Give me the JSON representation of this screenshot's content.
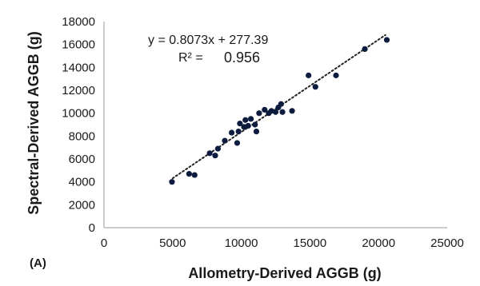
{
  "chart_data": {
    "type": "scatter",
    "panel_label": "(A)",
    "xlabel": "Allometry-Derived AGGB (g)",
    "ylabel": "Spectral-Derived AGGB (g)",
    "xlim": [
      0,
      25000
    ],
    "ylim": [
      0,
      18000
    ],
    "x_ticks": [
      0,
      5000,
      10000,
      15000,
      20000,
      25000
    ],
    "y_ticks": [
      0,
      2000,
      4000,
      6000,
      8000,
      10000,
      12000,
      14000,
      16000,
      18000
    ],
    "grid": false,
    "legend": "none",
    "trendline": {
      "equation": "y = 0.8073x + 277.39",
      "r2_label": "R² =",
      "r2_value": "0.956",
      "slope": 0.8073,
      "intercept": 277.39,
      "x_range": [
        5000,
        20500
      ],
      "style": "dotted"
    },
    "marker_color": "#0d1b3e",
    "points": [
      {
        "x": 4950,
        "y": 4000
      },
      {
        "x": 6200,
        "y": 4700
      },
      {
        "x": 6600,
        "y": 4600
      },
      {
        "x": 7700,
        "y": 6500
      },
      {
        "x": 8100,
        "y": 6300
      },
      {
        "x": 8300,
        "y": 6900
      },
      {
        "x": 8800,
        "y": 7600
      },
      {
        "x": 9300,
        "y": 8300
      },
      {
        "x": 9700,
        "y": 7400
      },
      {
        "x": 9800,
        "y": 8400
      },
      {
        "x": 9900,
        "y": 9100
      },
      {
        "x": 10200,
        "y": 8800
      },
      {
        "x": 10300,
        "y": 9400
      },
      {
        "x": 10500,
        "y": 8900
      },
      {
        "x": 10700,
        "y": 9500
      },
      {
        "x": 11000,
        "y": 9000
      },
      {
        "x": 11100,
        "y": 8400
      },
      {
        "x": 11300,
        "y": 10000
      },
      {
        "x": 11700,
        "y": 10300
      },
      {
        "x": 12000,
        "y": 10000
      },
      {
        "x": 12200,
        "y": 10200
      },
      {
        "x": 12500,
        "y": 10100
      },
      {
        "x": 12700,
        "y": 10500
      },
      {
        "x": 12900,
        "y": 10800
      },
      {
        "x": 13000,
        "y": 10100
      },
      {
        "x": 13700,
        "y": 10200
      },
      {
        "x": 14900,
        "y": 13300
      },
      {
        "x": 15400,
        "y": 12300
      },
      {
        "x": 16900,
        "y": 13300
      },
      {
        "x": 19000,
        "y": 15600
      },
      {
        "x": 20600,
        "y": 16400
      }
    ]
  }
}
